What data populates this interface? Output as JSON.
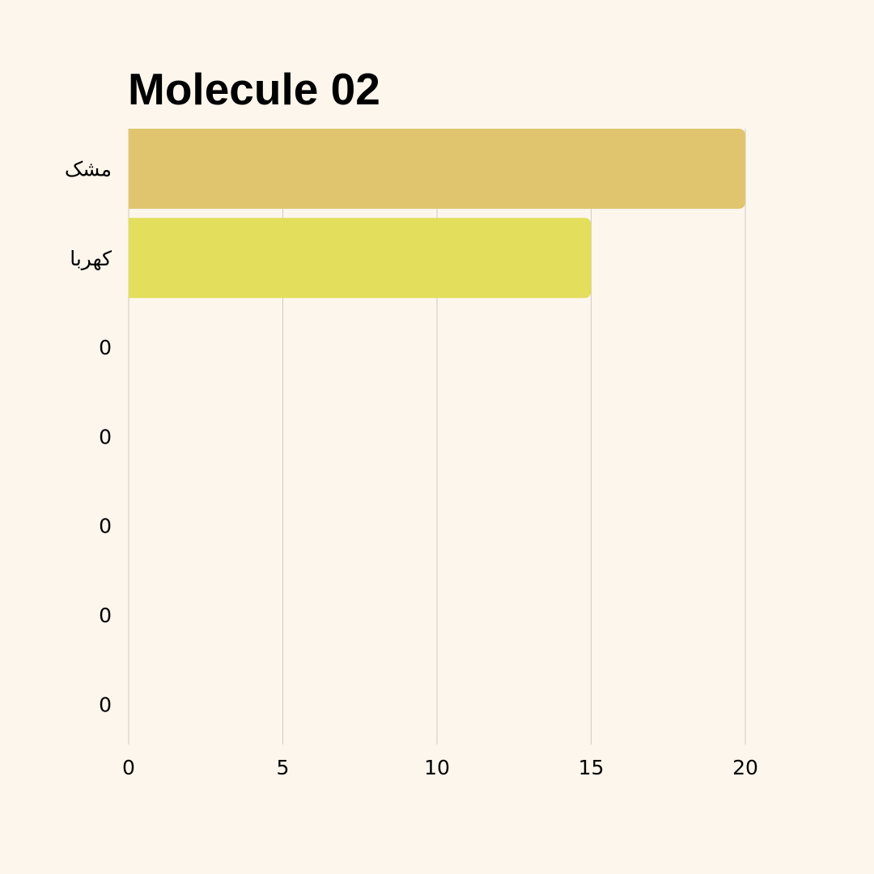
{
  "chart_data": {
    "type": "bar",
    "orientation": "horizontal",
    "title": "Molecule 02",
    "categories": [
      "مشک",
      "کهربا",
      "0",
      "0",
      "0",
      "0",
      "0"
    ],
    "values": [
      20,
      15,
      0,
      0,
      0,
      0,
      0
    ],
    "bar_colors": [
      "#e0c56e",
      "#e3de5c",
      "#e0c56e",
      "#e0c56e",
      "#e0c56e",
      "#e0c56e",
      "#e0c56e"
    ],
    "x_ticks": [
      "0",
      "5",
      "10",
      "15",
      "20"
    ],
    "xlim": [
      0,
      20
    ],
    "xlabel": "",
    "ylabel": "",
    "grid": "vertical",
    "legend": "none"
  },
  "colors": {
    "background": "#fdf6ed",
    "gridline": "#cfcbc4",
    "text": "#000000"
  }
}
